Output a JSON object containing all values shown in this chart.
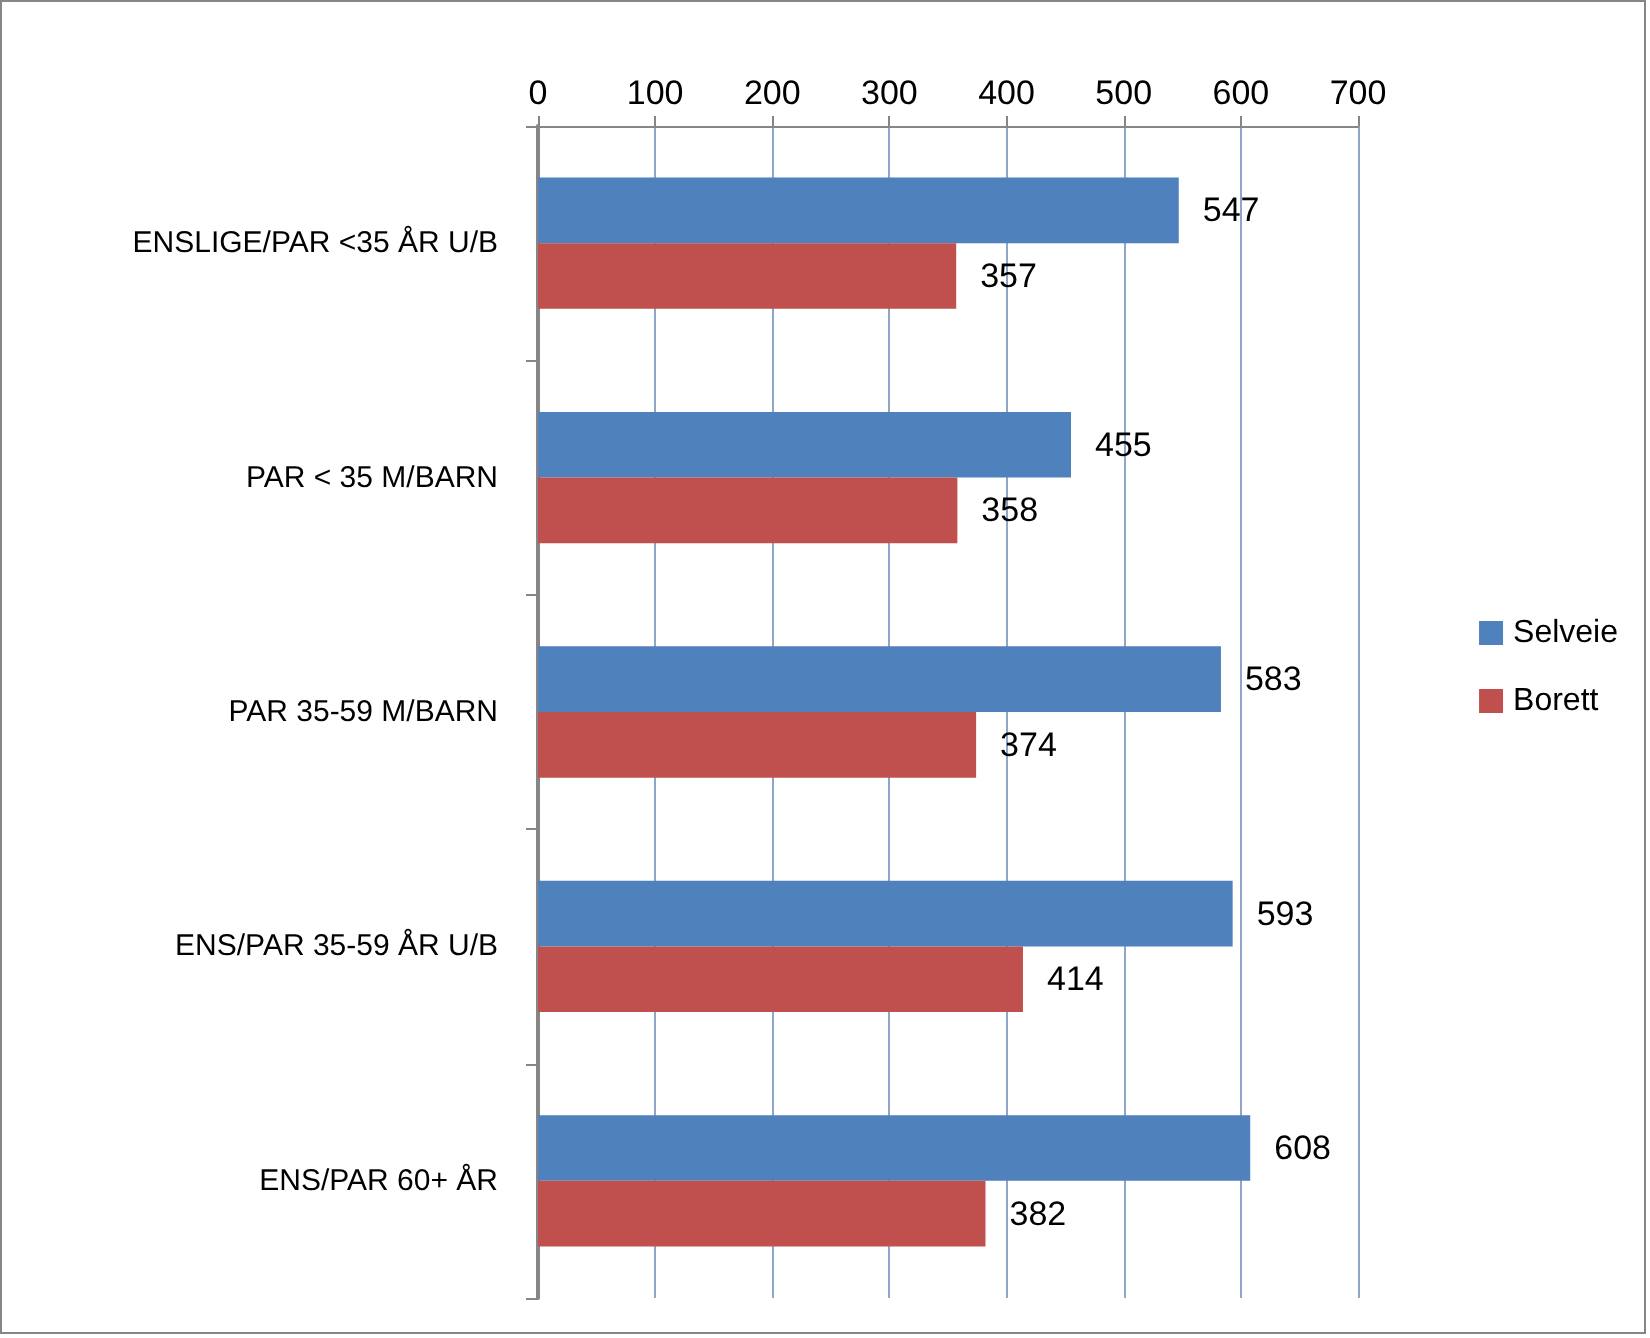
{
  "chart_data": {
    "type": "bar",
    "orientation": "horizontal",
    "categories": [
      "ENSLIGE/PAR <35 ÅR U/B",
      "PAR < 35 M/BARN",
      "PAR 35-59 M/BARN",
      "ENS/PAR 35-59 ÅR U/B",
      "ENS/PAR 60+ ÅR"
    ],
    "series": [
      {
        "name": "Selveie",
        "color": "#4f81bd",
        "values": [
          547,
          455,
          583,
          593,
          608
        ]
      },
      {
        "name": "Borett",
        "color": "#c0504d",
        "values": [
          357,
          358,
          374,
          414,
          382
        ]
      }
    ],
    "xlim": [
      0,
      700
    ],
    "xticks": [
      0,
      100,
      200,
      300,
      400,
      500,
      600,
      700
    ],
    "grid": "x",
    "legend": "right",
    "data_labels": true
  }
}
